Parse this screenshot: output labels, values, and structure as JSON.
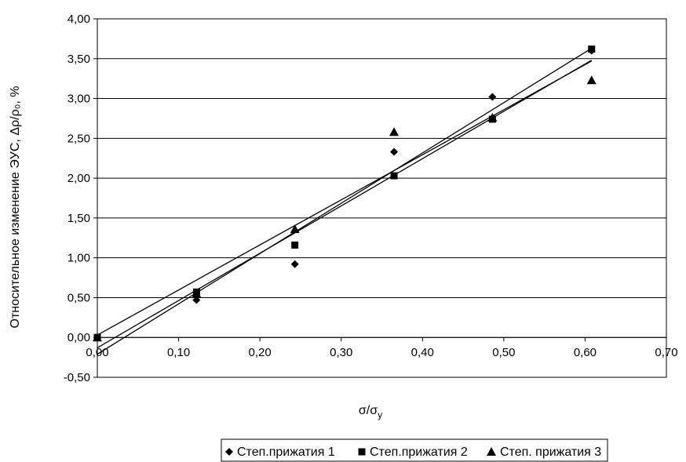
{
  "chart_data": {
    "type": "scatter",
    "xlabel": "σ/σ",
    "xlabel_sub": "y",
    "ylabel": "Относительное изменение ЭУС, Δρ/ρ₀, %",
    "xlim": [
      0,
      0.7
    ],
    "ylim": [
      -0.5,
      4.0
    ],
    "x_ticks": [
      "0,00",
      "0,10",
      "0,20",
      "0,30",
      "0,40",
      "0,50",
      "0,60",
      "0,70"
    ],
    "y_ticks": [
      "-0,50",
      "0,00",
      "0,50",
      "1,00",
      "1,50",
      "2,00",
      "2,50",
      "3,00",
      "3,50",
      "4,00"
    ],
    "y_gridlines": true,
    "legend_position": "bottom",
    "series": [
      {
        "name": "Степ.прижатия 1",
        "marker": "diamond",
        "x": [
          0.0,
          0.122,
          0.243,
          0.365,
          0.486,
          0.608
        ],
        "y": [
          0.0,
          0.47,
          0.92,
          2.33,
          3.02,
          3.6
        ],
        "trendline": [
          [
            0.0,
            -0.21
          ],
          [
            0.608,
            3.63
          ]
        ]
      },
      {
        "name": "Степ.прижатия 2",
        "marker": "square",
        "x": [
          0.0,
          0.122,
          0.243,
          0.365,
          0.486,
          0.608
        ],
        "y": [
          0.0,
          0.57,
          1.16,
          2.03,
          2.74,
          3.62
        ],
        "trendline": [
          [
            0.0,
            -0.13
          ],
          [
            0.608,
            3.48
          ]
        ]
      },
      {
        "name": "Степ. прижатия 3",
        "marker": "triangle",
        "x": [
          0.0,
          0.122,
          0.243,
          0.365,
          0.486,
          0.608
        ],
        "y": [
          0.0,
          0.55,
          1.36,
          2.58,
          2.76,
          3.23
        ],
        "trendline": [
          [
            0.0,
            0.03
          ],
          [
            0.608,
            3.47
          ]
        ]
      }
    ]
  }
}
